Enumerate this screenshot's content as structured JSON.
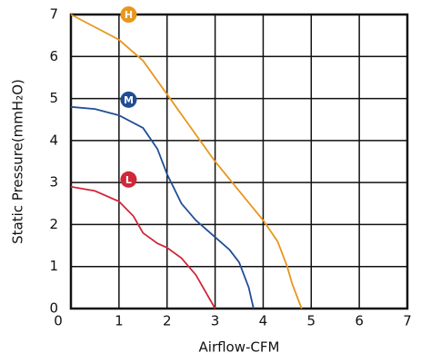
{
  "chart_data": {
    "type": "line",
    "x_label": "Airflow-CFM",
    "y_label": "Static Pressure(mmH₂O)",
    "xlim": [
      0,
      7
    ],
    "ylim": [
      0,
      7
    ],
    "xticks": [
      0,
      1,
      2,
      3,
      4,
      5,
      6,
      7
    ],
    "yticks": [
      0,
      1,
      2,
      3,
      4,
      5,
      6,
      7
    ],
    "grid": true,
    "series": [
      {
        "name": "H",
        "color": "#e8961e",
        "x": [
          0,
          0.5,
          1,
          1.5,
          2,
          2.5,
          3,
          3.5,
          4,
          4.3,
          4.5,
          4.6,
          4.8
        ],
        "values": [
          7.0,
          6.7,
          6.4,
          5.9,
          5.1,
          4.3,
          3.5,
          2.8,
          2.1,
          1.6,
          1.0,
          0.6,
          0
        ]
      },
      {
        "name": "M",
        "color": "#1f4e96",
        "x": [
          0,
          0.5,
          1,
          1.5,
          1.8,
          2,
          2.3,
          2.6,
          3,
          3.3,
          3.5,
          3.7,
          3.8
        ],
        "values": [
          4.8,
          4.75,
          4.6,
          4.3,
          3.8,
          3.2,
          2.5,
          2.1,
          1.7,
          1.4,
          1.1,
          0.5,
          0
        ]
      },
      {
        "name": "L",
        "color": "#d0273a",
        "x": [
          0,
          0.5,
          1,
          1.3,
          1.5,
          1.8,
          2,
          2.3,
          2.6,
          2.8,
          3
        ],
        "values": [
          2.9,
          2.8,
          2.55,
          2.2,
          1.8,
          1.55,
          1.45,
          1.2,
          0.8,
          0.4,
          0
        ]
      }
    ]
  }
}
